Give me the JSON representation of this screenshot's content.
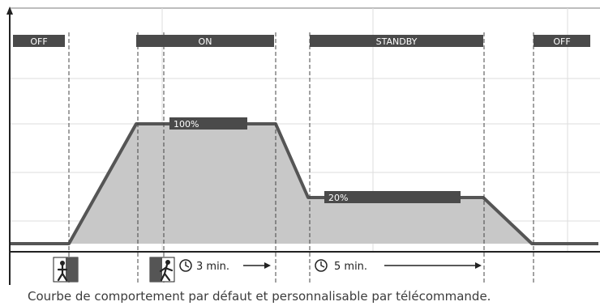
{
  "phases": [
    {
      "id": "off1",
      "label": "OFF"
    },
    {
      "id": "on",
      "label": "ON"
    },
    {
      "id": "standby",
      "label": "STANDBY"
    },
    {
      "id": "off2",
      "label": "OFF"
    }
  ],
  "levels": {
    "high": "100%",
    "standby": "20%"
  },
  "timers": {
    "on_delay": "3 min.",
    "standby_delay": "5 min."
  },
  "icons": [
    "motion-sensor-icon",
    "motion-sensor-walking-icon",
    "clock-icon",
    "arrow-right-icon"
  ],
  "colors": {
    "bar": "#4a4a4a",
    "curve": "#555555",
    "fill": "#c8c8c8",
    "grid": "#dddddd"
  },
  "caption": "Courbe de comportement par défaut et  personnalisable par télécommande."
}
